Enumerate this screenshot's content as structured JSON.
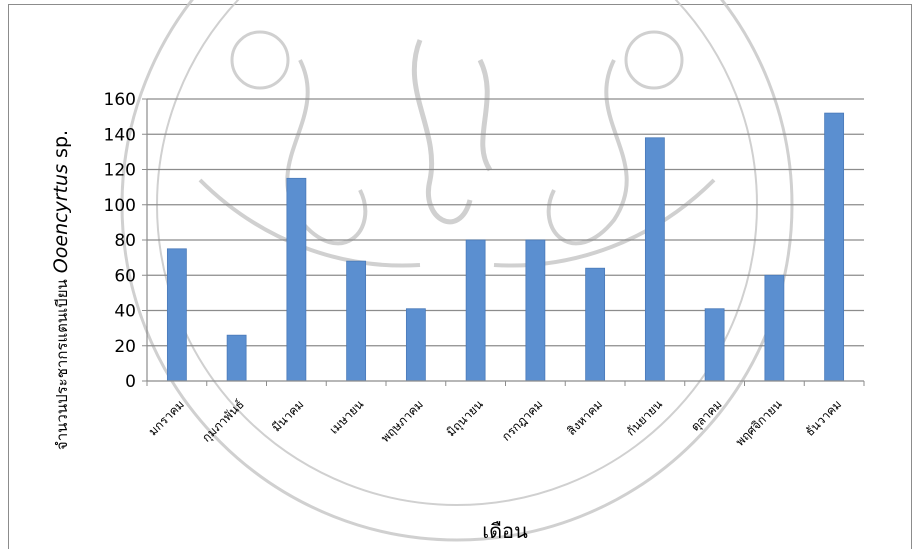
{
  "chart_data": {
    "type": "bar",
    "categories": [
      "มกราคม",
      "กุมภาพันธ์",
      "มีนาคม",
      "เมษายน",
      "พฤษภาคม",
      "มิถุนายน",
      "กรกฎาคม",
      "สิงหาคม",
      "กันยายน",
      "ตุลาคม",
      "พฤศจิกายน",
      "ธันวาคม"
    ],
    "values": [
      75,
      26,
      115,
      68,
      41,
      80,
      80,
      64,
      138,
      41,
      60,
      152
    ],
    "ylim": [
      0,
      160
    ],
    "yticks": [
      0,
      20,
      40,
      60,
      80,
      100,
      120,
      140,
      160
    ],
    "ytick_labels": [
      "0",
      "20",
      "40",
      "60",
      "80",
      "100",
      "120",
      "140",
      "160"
    ],
    "ylabel_prefix": "จำนวนประชากรแตนเบียน",
    "ylabel_species": "Ooencyrtus",
    "ylabel_suffix": " sp.",
    "xlabel": "เดือน",
    "grid": "horizontal",
    "legend": "none",
    "colors": {
      "bar": "#5b8fd0",
      "bar_edge": "#4a7ab8",
      "grid": "#8c8c8c",
      "axis": "#8c8c8c"
    }
  }
}
